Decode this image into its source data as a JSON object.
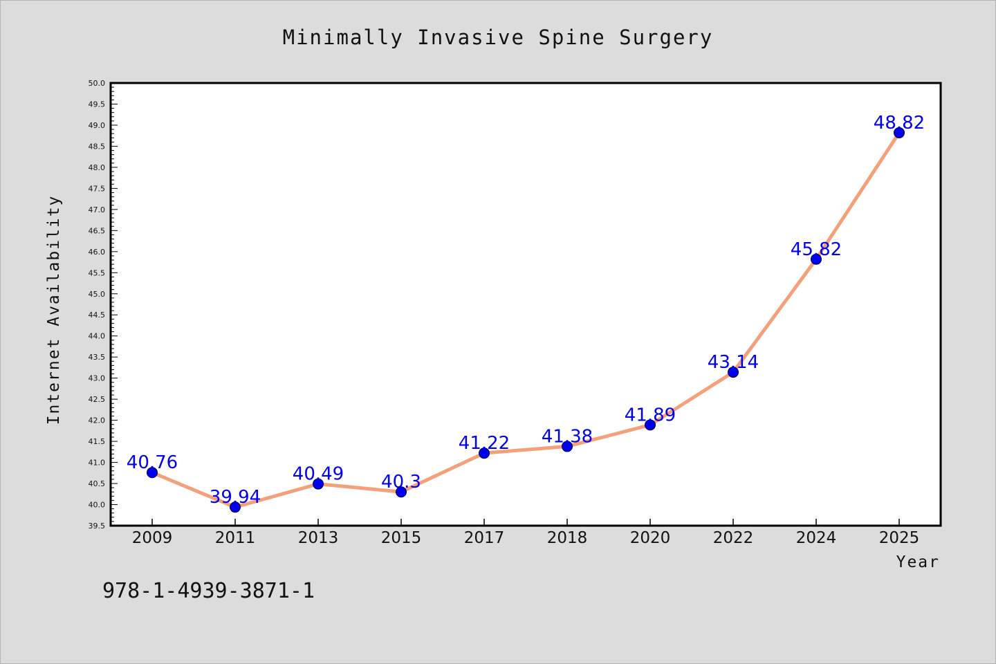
{
  "chart_data": {
    "type": "line",
    "title": "Minimally Invasive Spine Surgery",
    "xlabel": "Year",
    "ylabel": "Internet Availability",
    "categories": [
      "2009",
      "2011",
      "2013",
      "2015",
      "2017",
      "2018",
      "2020",
      "2022",
      "2024",
      "2025"
    ],
    "series": [
      {
        "values": [
          40.76,
          39.94,
          40.49,
          40.3,
          41.22,
          41.38,
          41.89,
          43.14,
          45.82,
          48.82
        ],
        "data_labels": [
          "40.76",
          "39.94",
          "40.49",
          "40.3",
          "41.22",
          "41.38",
          "41.89",
          "43.14",
          "45.82",
          "48.82"
        ]
      }
    ],
    "ylim": [
      39.5,
      50.0
    ],
    "yticks": [
      "39.5",
      "40.0",
      "40.5",
      "41.0",
      "41.5",
      "42.0",
      "42.5",
      "43.0",
      "43.5",
      "44.0",
      "44.5",
      "45.0",
      "45.5",
      "46.0",
      "46.5",
      "47.0",
      "47.5",
      "48.0",
      "48.5",
      "49.0",
      "49.5",
      "50.0"
    ],
    "grid": false,
    "legend": "none",
    "colors": {
      "line": "#f4a07a",
      "marker": "#0000ee",
      "data_label": "#0000ee",
      "background": "#dcdcdc",
      "plot_area": "#ffffff"
    }
  },
  "footer": {
    "isbn": "978-1-4939-3871-1"
  }
}
